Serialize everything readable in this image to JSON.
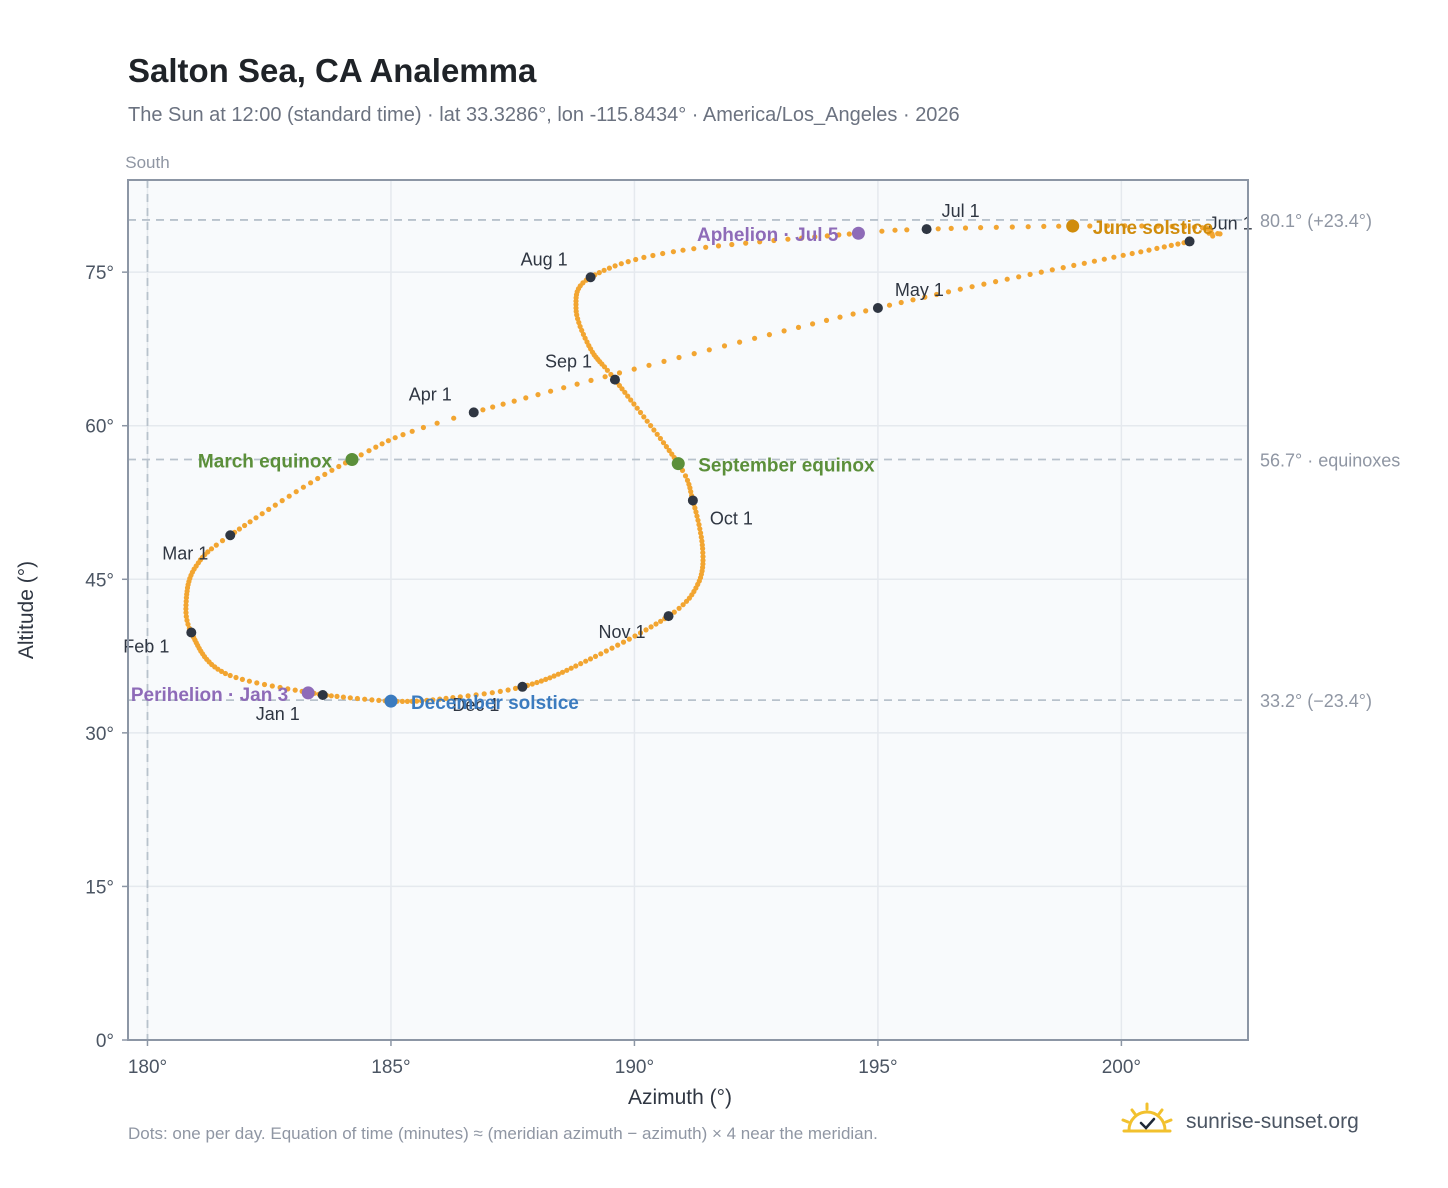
{
  "header": {
    "title": "Salton Sea, CA Analemma",
    "subtitle": "The Sun at 12:00 (standard time) · lat 33.3286°, lon -115.8434° · America/Los_Angeles · 2026"
  },
  "footer": {
    "note": "Dots: one per day. Equation of time (minutes) ≈ (meridian azimuth − azimuth) × 4 near the meridian.",
    "brand": "sunrise-sunset.org",
    "brand_icon": "sun-check-icon"
  },
  "colors": {
    "path": "#f2a531",
    "month_marker": "#2f3642",
    "equinox": "#5b8f3a",
    "june_solstice": "#d08c0c",
    "december_solstice": "#3b7bbf",
    "aphelion_perihelion": "#8e6bb8",
    "reference": "#b8c2cc",
    "plot_bg": "#f8fafc",
    "grid": "#e5e9ee",
    "frame": "#8c96a5"
  },
  "chart_data": {
    "type": "scatter",
    "xlabel": "Azimuth (°)",
    "ylabel": "Altitude (°)",
    "xlim": [
      179.6,
      202.6
    ],
    "ylim": [
      0,
      84
    ],
    "xticks": [
      180,
      185,
      190,
      195,
      200
    ],
    "yticks": [
      0,
      15,
      30,
      45,
      60,
      75
    ],
    "tick_suffix": "°",
    "grid": true,
    "south_marker": {
      "azimuth": 180,
      "label": "South"
    },
    "reference_lines": [
      {
        "altitude": 80.1,
        "label": "80.1° (+23.4°)"
      },
      {
        "altitude": 56.7,
        "label": "56.7° · equinoxes"
      },
      {
        "altitude": 33.2,
        "label": "33.2° (−23.4°)"
      }
    ],
    "path_keypoints": [
      {
        "doy": 0,
        "az": 183.6,
        "alt": 33.7
      },
      {
        "doy": 15,
        "az": 181.6,
        "alt": 35.8
      },
      {
        "doy": 31,
        "az": 180.9,
        "alt": 39.8
      },
      {
        "doy": 40,
        "az": 180.8,
        "alt": 43.2
      },
      {
        "doy": 50,
        "az": 181.0,
        "alt": 46.3
      },
      {
        "doy": 59,
        "az": 181.7,
        "alt": 49.3
      },
      {
        "doy": 78,
        "az": 184.2,
        "alt": 56.7
      },
      {
        "doy": 90,
        "az": 186.7,
        "alt": 61.3
      },
      {
        "doy": 120,
        "az": 195.0,
        "alt": 71.5
      },
      {
        "doy": 151,
        "az": 201.4,
        "alt": 78.0
      },
      {
        "doy": 156,
        "az": 201.8,
        "alt": 78.8
      },
      {
        "doy": 163,
        "az": 201.5,
        "alt": 79.4
      },
      {
        "doy": 171,
        "az": 199.0,
        "alt": 79.5
      },
      {
        "doy": 181,
        "az": 196.0,
        "alt": 79.2
      },
      {
        "doy": 185,
        "az": 194.6,
        "alt": 78.8
      },
      {
        "doy": 200,
        "az": 190.8,
        "alt": 77.0
      },
      {
        "doy": 212,
        "az": 189.1,
        "alt": 74.5
      },
      {
        "doy": 222,
        "az": 188.8,
        "alt": 71.5
      },
      {
        "doy": 233,
        "az": 189.1,
        "alt": 67.5
      },
      {
        "doy": 243,
        "az": 189.6,
        "alt": 64.5
      },
      {
        "doy": 265,
        "az": 190.9,
        "alt": 56.3
      },
      {
        "doy": 273,
        "az": 191.2,
        "alt": 52.7
      },
      {
        "doy": 285,
        "az": 191.4,
        "alt": 48.0
      },
      {
        "doy": 295,
        "az": 191.3,
        "alt": 44.5
      },
      {
        "doy": 304,
        "az": 190.7,
        "alt": 41.4
      },
      {
        "doy": 320,
        "az": 189.0,
        "alt": 37.0
      },
      {
        "doy": 334,
        "az": 187.7,
        "alt": 34.5
      },
      {
        "doy": 345,
        "az": 186.0,
        "alt": 33.3
      },
      {
        "doy": 354,
        "az": 185.0,
        "alt": 33.1
      },
      {
        "doy": 365,
        "az": 183.6,
        "alt": 33.7
      }
    ],
    "month_markers": [
      {
        "label": "Jan 1",
        "az": 183.6,
        "alt": 33.7,
        "dx": -67,
        "dy": 25
      },
      {
        "label": "Feb 1",
        "az": 180.9,
        "alt": 39.8,
        "dx": -68,
        "dy": 20
      },
      {
        "label": "Mar 1",
        "az": 181.7,
        "alt": 49.3,
        "dx": -68,
        "dy": 24
      },
      {
        "label": "Apr 1",
        "az": 186.7,
        "alt": 61.3,
        "dx": -65,
        "dy": -12
      },
      {
        "label": "May 1",
        "az": 195.0,
        "alt": 71.5,
        "dx": 17,
        "dy": -12
      },
      {
        "label": "Jun 1",
        "az": 201.4,
        "alt": 78.0,
        "dx": 19,
        "dy": -12
      },
      {
        "label": "Jul 1",
        "az": 196.0,
        "alt": 79.2,
        "dx": 15,
        "dy": -12
      },
      {
        "label": "Aug 1",
        "az": 189.1,
        "alt": 74.5,
        "dx": -70,
        "dy": -12
      },
      {
        "label": "Sep 1",
        "az": 189.6,
        "alt": 64.5,
        "dx": -70,
        "dy": -12
      },
      {
        "label": "Oct 1",
        "az": 191.2,
        "alt": 52.7,
        "dx": 17,
        "dy": 24
      },
      {
        "label": "Nov 1",
        "az": 190.7,
        "alt": 41.4,
        "dx": -70,
        "dy": 22
      },
      {
        "label": "Dec 1",
        "az": 187.7,
        "alt": 34.5,
        "dx": -70,
        "dy": 24
      }
    ],
    "events": [
      {
        "label": "March equinox",
        "az": 184.2,
        "alt": 56.7,
        "color": "#5b8f3a",
        "anchor": "end",
        "dx": -20,
        "dy": 8
      },
      {
        "label": "September equinox",
        "az": 190.9,
        "alt": 56.3,
        "color": "#5b8f3a",
        "anchor": "start",
        "dx": 20,
        "dy": 8
      },
      {
        "label": "June solstice",
        "az": 199.0,
        "alt": 79.5,
        "color": "#d08c0c",
        "anchor": "start",
        "dx": 20,
        "dy": 8
      },
      {
        "label": "December solstice",
        "az": 185.0,
        "alt": 33.1,
        "color": "#3b7bbf",
        "anchor": "start",
        "dx": 20,
        "dy": 8
      },
      {
        "label": "Aphelion · Jul 5",
        "az": 194.6,
        "alt": 78.8,
        "color": "#8e6bb8",
        "anchor": "end",
        "dx": -20,
        "dy": 8
      },
      {
        "label": "Perihelion · Jan 3",
        "az": 183.3,
        "alt": 33.9,
        "color": "#8e6bb8",
        "anchor": "end",
        "dx": -20,
        "dy": 8
      }
    ]
  }
}
